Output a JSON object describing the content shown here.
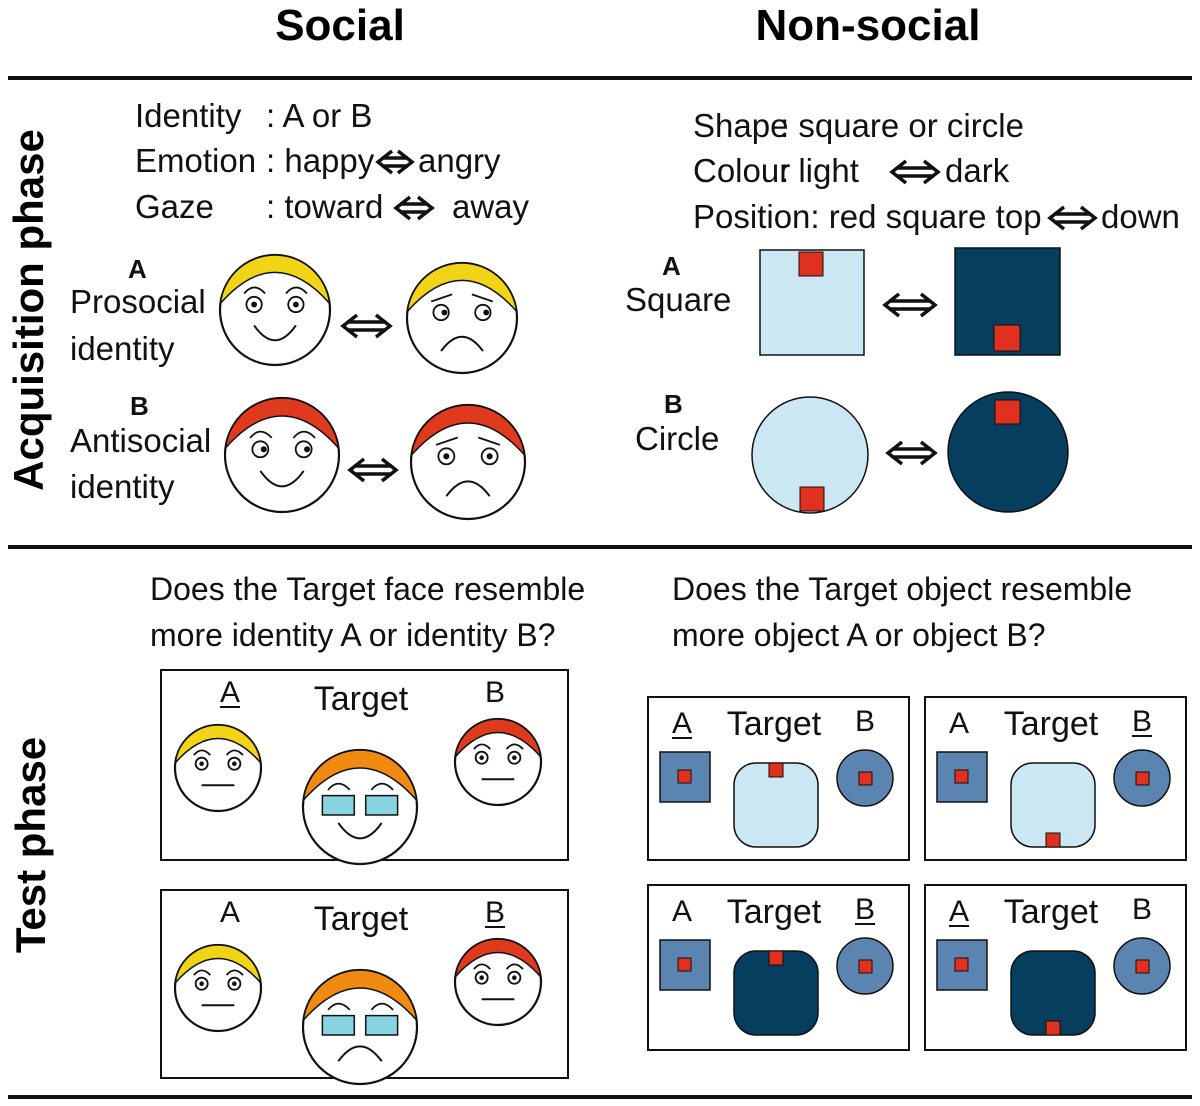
{
  "headers": {
    "social": "Social",
    "nonsocial": "Non-social"
  },
  "phases": {
    "acquisition": "Acquisition phase",
    "test": "Test phase"
  },
  "social_attributes": {
    "identity_label": "Identity",
    "identity_value": ": A or B",
    "emotion_label": "Emotion",
    "emotion_from": ": happy",
    "emotion_to": "angry",
    "gaze_label": "Gaze",
    "gaze_from": ": toward",
    "gaze_to": "away"
  },
  "nonsocial_attributes": {
    "shape_label": "Shape",
    "shape_value": ": square or circle",
    "colour_label": "Colour",
    "colour_from": ": light",
    "colour_to": "dark",
    "position_text": "Position: red square top",
    "position_to": "down"
  },
  "social_identities": {
    "a_letter": "A",
    "a_line1": "Prosocial",
    "a_line2": "identity",
    "b_letter": "B",
    "b_line1": "Antisocial",
    "b_line2": "identity"
  },
  "nonsocial_objects": {
    "a_letter": "A",
    "a_name": "Square",
    "b_letter": "B",
    "b_name": "Circle"
  },
  "questions": {
    "social_line1": "Does the Target face resemble",
    "social_line2": "more identity A or identity B?",
    "nonsocial_line1": "Does the Target object resemble",
    "nonsocial_line2": "more object A or object B?"
  },
  "test_labels": {
    "a": "A",
    "b": "B",
    "target": "Target"
  },
  "social_trials": [
    {
      "underlined": "A",
      "target_expression": "happy"
    },
    {
      "underlined": "B",
      "target_expression": "angry"
    }
  ],
  "nonsocial_trials": [
    {
      "underlined": "A",
      "target_colour": "light",
      "red_position": "top"
    },
    {
      "underlined": "B",
      "target_colour": "light",
      "red_position": "bottom"
    },
    {
      "underlined": "B",
      "target_colour": "dark",
      "red_position": "top"
    },
    {
      "underlined": "A",
      "target_colour": "dark",
      "red_position": "bottom"
    }
  ],
  "colors": {
    "hair_a": "#f2d417",
    "hair_b": "#e03a1e",
    "hair_target": "#f08a12",
    "light": "#cbe7f3",
    "dark": "#063e60",
    "mid": "#5c84b0",
    "red": "#e0301e",
    "glasses": "#88d3e0"
  }
}
